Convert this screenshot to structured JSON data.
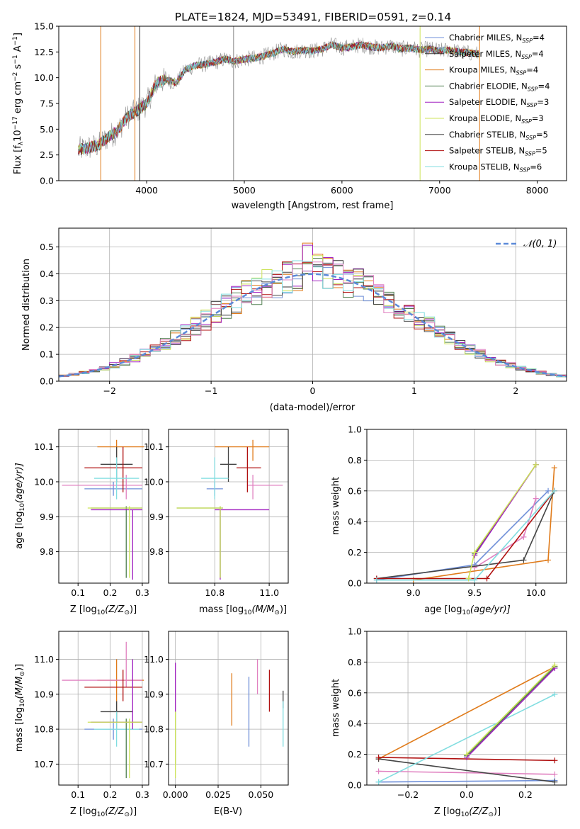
{
  "figure": {
    "title": "PLATE=1824, MJD=53491, FIBERID=0591, z=0.14"
  },
  "colors": {
    "chabrier_miles": "#6f8fd8",
    "salpeter_miles": "#333333",
    "kroupa_miles": "#e07b1a",
    "chabrier_elodie": "#4f7f4f",
    "salpeter_elodie": "#a020c0",
    "kroupa_elodie": "#cde35a",
    "chabrier_stelib": "#444444",
    "salpeter_stelib": "#b01010",
    "kroupa_stelib": "#80dde0",
    "pink": "#e080c0",
    "data": "#888888",
    "normal": "#5b8ad9"
  },
  "legend1": [
    {
      "label": "Chabrier MILES, N",
      "sub": "SSP",
      "tail": "=4",
      "color_key": "chabrier_miles"
    },
    {
      "label": "Salpeter MILES, N",
      "sub": "SSP",
      "tail": "=4",
      "color_key": "salpeter_miles"
    },
    {
      "label": "Kroupa MILES, N",
      "sub": "SSP",
      "tail": "=4",
      "color_key": "kroupa_miles"
    },
    {
      "label": "Chabrier ELODIE, N",
      "sub": "SSP",
      "tail": "=4",
      "color_key": "chabrier_elodie"
    },
    {
      "label": "Salpeter ELODIE, N",
      "sub": "SSP",
      "tail": "=3",
      "color_key": "salpeter_elodie"
    },
    {
      "label": "Kroupa ELODIE, N",
      "sub": "SSP",
      "tail": "=3",
      "color_key": "kroupa_elodie"
    },
    {
      "label": "Chabrier STELIB, N",
      "sub": "SSP",
      "tail": "=5",
      "color_key": "chabrier_stelib"
    },
    {
      "label": "Salpeter STELIB, N",
      "sub": "SSP",
      "tail": "=5",
      "color_key": "salpeter_stelib"
    },
    {
      "label": "Kroupa STELIB, N",
      "sub": "SSP",
      "tail": "=6",
      "color_key": "kroupa_stelib"
    }
  ],
  "legend2": {
    "label": "𝒩(0, 1)"
  },
  "chart_data": [
    {
      "id": "spectrum",
      "type": "line",
      "xlabel": "wavelength [Angstrom, rest frame]",
      "ylabel": "Flux [f",
      "ylabel_sub": "λ",
      "ylabel_mid": "10",
      "ylabel_sup1": "−17",
      "ylabel_mid2": " erg cm",
      "ylabel_sup2": "−2",
      "ylabel_mid3": " s",
      "ylabel_sup3": "−1",
      "ylabel_mid4": " A",
      "ylabel_sup4": "−1",
      "ylabel_end": "]",
      "xlim": [
        3100,
        8300
      ],
      "ylim": [
        0,
        15
      ],
      "xticks": [
        "4000",
        "5000",
        "6000",
        "7000",
        "8000"
      ],
      "yticks": [
        "0.0",
        "2.5",
        "5.0",
        "7.5",
        "10.0",
        "12.5",
        "15.0"
      ],
      "grid": false,
      "series": [
        {
          "x": [
            3300,
            3400,
            3500,
            3600,
            3700,
            3800,
            3900,
            4000,
            4100,
            4200,
            4300,
            4400,
            4500,
            4600,
            4700,
            4800,
            4900,
            5000,
            5100,
            5200,
            5300,
            5400,
            5500,
            5600,
            5700,
            5800,
            5900,
            6000,
            6100,
            6200,
            6300,
            6400,
            6500,
            6600,
            6700,
            6800,
            6900,
            7000,
            7100,
            7200,
            7300,
            7400
          ],
          "y": [
            3.0,
            3.2,
            3.4,
            4.2,
            4.8,
            6.2,
            6.8,
            7.5,
            9.5,
            9.8,
            9.5,
            10.8,
            11.2,
            11.3,
            11.5,
            11.8,
            11.6,
            11.8,
            11.9,
            12.1,
            12.4,
            12.8,
            12.5,
            12.7,
            12.6,
            12.8,
            13.2,
            12.9,
            13.0,
            13.2,
            13.0,
            12.9,
            13.1,
            12.8,
            12.9,
            12.7,
            12.8,
            12.6,
            12.7,
            12.5,
            12.4,
            12.3
          ]
        }
      ]
    },
    {
      "id": "residuals",
      "type": "line",
      "xlabel": "(data-model)/error",
      "ylabel": "Normed distribution",
      "xlim": [
        -2.5,
        2.5
      ],
      "ylim": [
        0,
        0.57
      ],
      "xticks": [
        "−2",
        "−1",
        "0",
        "1",
        "2"
      ],
      "yticks": [
        "0.0",
        "0.1",
        "0.2",
        "0.3",
        "0.4",
        "0.5"
      ],
      "grid": true,
      "legend_position": "top-right"
    },
    {
      "id": "age_vs_Z",
      "type": "scatter",
      "xlabel_pre": "Z [log",
      "xlabel_sub": "10",
      "xlabel_post": "(Z/Z",
      "xlabel_sub2": "⊙",
      "xlabel_end": ")]",
      "ylabel_pre": "age  [log",
      "ylabel_sub": "10",
      "ylabel_post": "(age/yr)]",
      "xlim": [
        0.04,
        0.32
      ],
      "ylim": [
        9.71,
        10.15
      ],
      "xticks": [
        "0.1",
        "0.2",
        "0.3"
      ],
      "yticks": [
        "9.8",
        "9.9",
        "10.0",
        "10.1"
      ],
      "grid": true
    },
    {
      "id": "age_vs_mass",
      "type": "scatter",
      "xlabel_pre": "mass [log",
      "xlabel_sub": "10",
      "xlabel_post": "(M/M",
      "xlabel_sub2": "⊙",
      "xlabel_end": ")]",
      "xlim": [
        10.63,
        11.07
      ],
      "ylim": [
        9.71,
        10.15
      ],
      "xticks": [
        "10.8",
        "11.0"
      ],
      "yticks": [
        "9.8",
        "9.9",
        "10.0",
        "10.1"
      ],
      "grid": true
    },
    {
      "id": "weight_vs_age",
      "type": "line",
      "xlabel_pre": "age  [log",
      "xlabel_sub": "10",
      "xlabel_post": "(age/yr)]",
      "ylabel": "mass weight",
      "xlim": [
        8.62,
        10.25
      ],
      "ylim": [
        0,
        1
      ],
      "xticks": [
        "9.0",
        "9.5",
        "10.0"
      ],
      "yticks": [
        "0.0",
        "0.2",
        "0.4",
        "0.6",
        "0.8",
        "1.0"
      ],
      "grid": true
    },
    {
      "id": "mass_vs_Z",
      "type": "scatter",
      "xlabel_pre": "Z [log",
      "xlabel_sub": "10",
      "xlabel_post": "(Z/Z",
      "xlabel_sub2": "⊙",
      "xlabel_end": ")]",
      "ylabel_pre": "mass [log",
      "ylabel_sub": "10",
      "ylabel_post": "(M/M",
      "ylabel_sub2": "⊙",
      "ylabel_end": ")]",
      "xlim": [
        0.04,
        0.32
      ],
      "ylim": [
        10.64,
        11.08
      ],
      "xticks": [
        "0.1",
        "0.2",
        "0.3"
      ],
      "yticks": [
        "10.7",
        "10.8",
        "10.9",
        "11.0"
      ],
      "grid": true
    },
    {
      "id": "mass_vs_ebv",
      "type": "scatter",
      "xlabel": "E(B-V)",
      "xlim": [
        -0.004,
        0.066
      ],
      "ylim": [
        10.64,
        11.08
      ],
      "xticks": [
        "0.000",
        "0.025",
        "0.050"
      ],
      "yticks": [
        "10.7",
        "10.8",
        "10.9",
        "11.0"
      ],
      "grid": true
    },
    {
      "id": "weight_vs_Z",
      "type": "line",
      "xlabel_pre": "Z [log",
      "xlabel_sub": "10",
      "xlabel_post": "(Z/Z",
      "xlabel_sub2": "⊙",
      "xlabel_end": ")]",
      "ylabel": "mass weight",
      "xlim": [
        -0.34,
        0.34
      ],
      "ylim": [
        0,
        1
      ],
      "xticks": [
        "−0.2",
        "0.0",
        "0.2"
      ],
      "yticks": [
        "0.0",
        "0.2",
        "0.4",
        "0.6",
        "0.8",
        "1.0"
      ],
      "grid": true
    }
  ],
  "model_fits": [
    {
      "key": "kroupa_miles",
      "Z": [
        0.16,
        0.305
      ],
      "Zc": 0.22,
      "age": [
        10.06,
        10.12
      ],
      "agec": 10.1,
      "mass": [
        10.8,
        11.0
      ],
      "massc": 10.94,
      "ebv": [
        10.81,
        10.96
      ],
      "ebvx": 0.033,
      "aw": [
        [
          9.0,
          0.02
        ],
        [
          10.1,
          0.15
        ],
        [
          10.15,
          0.75
        ]
      ],
      "zw": [
        [
          -0.3,
          0.17
        ],
        [
          0.3,
          0.77
        ]
      ]
    },
    {
      "key": "chabrier_miles",
      "Z": [
        0.12,
        0.3
      ],
      "Zc": 0.21,
      "age": [
        9.96,
        10.0
      ],
      "agec": 9.98,
      "mass": [
        10.77,
        10.83
      ],
      "massc": 10.8,
      "ebv": [
        10.75,
        10.95
      ],
      "ebvx": 0.043,
      "aw": [
        [
          8.7,
          0.02
        ],
        [
          9.5,
          0.12
        ],
        [
          10.1,
          0.6
        ]
      ],
      "zw": [
        [
          -0.3,
          0.02
        ],
        [
          0.3,
          0.03
        ]
      ]
    },
    {
      "key": "pink",
      "Z": [
        0.05,
        0.3
      ],
      "Zc": 0.25,
      "age": [
        9.95,
        10.02
      ],
      "agec": 9.99,
      "mass": [
        10.92,
        11.05
      ],
      "massc": 10.94,
      "ebv": [
        10.9,
        11.0
      ],
      "ebvx": 0.048,
      "aw": [
        [
          9.5,
          0.1
        ],
        [
          9.9,
          0.3
        ],
        [
          10.0,
          0.55
        ]
      ],
      "zw": [
        [
          -0.3,
          0.09
        ],
        [
          0.3,
          0.07
        ]
      ]
    },
    {
      "key": "chabrier_stelib",
      "Z": [
        0.17,
        0.27
      ],
      "Zc": 0.22,
      "age": [
        10.0,
        10.1
      ],
      "agec": 10.05,
      "mass": [
        10.82,
        10.88
      ],
      "massc": 10.85,
      "ebv": [
        10.86,
        10.91
      ],
      "ebvx": 0.063,
      "aw": [
        [
          8.7,
          0.03
        ],
        [
          9.9,
          0.15
        ],
        [
          10.15,
          0.6
        ]
      ],
      "zw": [
        [
          -0.3,
          0.17
        ],
        [
          0.3,
          0.02
        ]
      ]
    },
    {
      "key": "salpeter_stelib",
      "Z": [
        0.12,
        0.3
      ],
      "Zc": 0.24,
      "age": [
        9.97,
        10.1
      ],
      "agec": 10.04,
      "mass": [
        10.88,
        10.97
      ],
      "massc": 10.92,
      "ebv": [
        10.85,
        10.97
      ],
      "ebvx": 0.055,
      "aw": [
        [
          8.7,
          0.03
        ],
        [
          9.6,
          0.03
        ],
        [
          10.15,
          0.6
        ]
      ],
      "zw": [
        [
          -0.3,
          0.18
        ],
        [
          0.3,
          0.16
        ]
      ]
    },
    {
      "key": "kroupa_stelib",
      "Z": [
        0.15,
        0.29
      ],
      "Zc": 0.22,
      "age": [
        9.95,
        10.07
      ],
      "agec": 10.01,
      "mass": [
        10.75,
        10.85
      ],
      "massc": 10.8,
      "ebv": [
        10.75,
        10.88
      ],
      "ebvx": 0.063,
      "aw": [
        [
          8.7,
          0.02
        ],
        [
          9.5,
          0.02
        ],
        [
          10.15,
          0.6
        ]
      ],
      "zw": [
        [
          -0.3,
          0.02
        ],
        [
          0.3,
          0.59
        ]
      ]
    },
    {
      "key": "chabrier_elodie",
      "Z": [
        0.14,
        0.3
      ],
      "Zc": 0.25,
      "age": [
        9.725,
        9.93
      ],
      "agec": 9.925,
      "mass": [
        10.66,
        10.83
      ],
      "massc": 10.82,
      "ebv": [
        10.7,
        10.85
      ],
      "ebvx": 0.0,
      "aw": [
        [
          9.5,
          0.19
        ],
        [
          10.0,
          0.77
        ]
      ],
      "zw": [
        [
          0.0,
          0.19
        ],
        [
          0.3,
          0.77
        ]
      ]
    },
    {
      "key": "salpeter_elodie",
      "Z": [
        0.14,
        0.3
      ],
      "Zc": 0.27,
      "age": [
        9.72,
        9.92
      ],
      "agec": 9.92,
      "mass": [
        10.8,
        11.0
      ],
      "massc": 10.82,
      "ebv": [
        10.85,
        10.99
      ],
      "ebvx": 0.0,
      "aw": [
        [
          9.5,
          0.18
        ],
        [
          10.0,
          0.77
        ]
      ],
      "zw": [
        [
          0.0,
          0.18
        ],
        [
          0.3,
          0.76
        ]
      ]
    },
    {
      "key": "kroupa_elodie",
      "Z": [
        0.13,
        0.3
      ],
      "Zc": 0.26,
      "age": [
        9.725,
        9.93
      ],
      "agec": 9.925,
      "mass": [
        10.66,
        10.83
      ],
      "massc": 10.82,
      "ebv": [
        10.66,
        10.85
      ],
      "ebvx": 0.0,
      "aw": [
        [
          9.45,
          0.03
        ],
        [
          9.5,
          0.2
        ],
        [
          10.0,
          0.77
        ]
      ],
      "zw": [
        [
          0.0,
          0.2
        ],
        [
          0.3,
          0.78
        ]
      ]
    }
  ]
}
